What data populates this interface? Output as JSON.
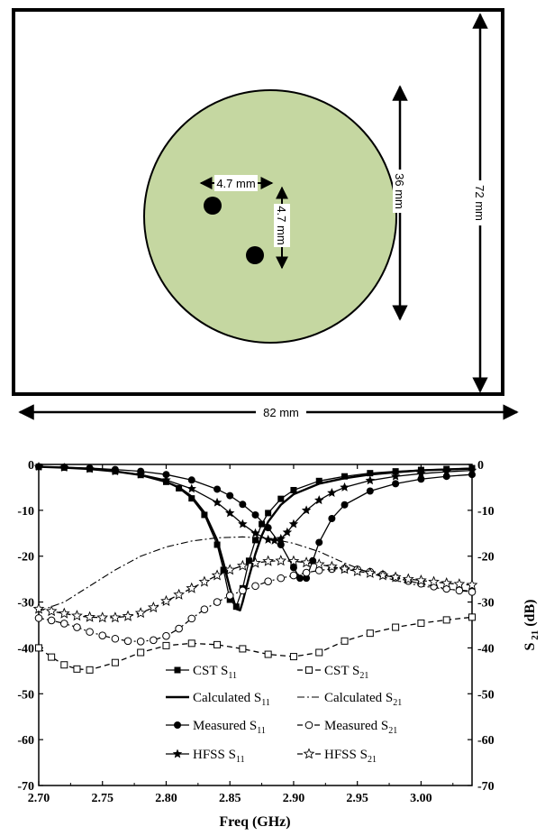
{
  "diagram": {
    "width_label": "82 mm",
    "height_label": "72 mm",
    "patch_label": "36 mm",
    "pin_horizontal_label": "4.7 mm",
    "pin_vertical_label": "4.7 mm",
    "colors": {
      "patch": "#c5d7a1",
      "outline": "#000000"
    }
  },
  "chart_data": {
    "type": "line",
    "xlabel": "Freq (GHz)",
    "ylabel_right": "S21 (dB)",
    "xlim": [
      2.7,
      3.04
    ],
    "ylim": [
      -70,
      0
    ],
    "xticks": [
      2.7,
      2.75,
      2.8,
      2.85,
      2.9,
      2.95,
      3.0
    ],
    "xtick_labels": [
      "2.70",
      "2.75",
      "2.80",
      "2.85",
      "2.90",
      "2.95",
      "3.00"
    ],
    "yticks": [
      0,
      -10,
      -20,
      -30,
      -40,
      -50,
      -60,
      -70
    ],
    "ytick_labels": [
      "0",
      "-10",
      "-20",
      "-30",
      "-40",
      "-50",
      "-60",
      "-70"
    ],
    "series": [
      {
        "name": "CST S11",
        "base": "CST S",
        "sub": "11",
        "style": "solid",
        "marker": "filled-square",
        "x": [
          2.7,
          2.72,
          2.74,
          2.76,
          2.78,
          2.8,
          2.81,
          2.82,
          2.83,
          2.84,
          2.845,
          2.85,
          2.855,
          2.86,
          2.865,
          2.87,
          2.875,
          2.88,
          2.89,
          2.9,
          2.92,
          2.94,
          2.96,
          2.98,
          3.0,
          3.02,
          3.04
        ],
        "y": [
          -0.5,
          -0.7,
          -1.0,
          -1.5,
          -2.3,
          -3.8,
          -5.2,
          -7.4,
          -11.0,
          -17.5,
          -23.0,
          -29.5,
          -31.0,
          -27.0,
          -21.0,
          -16.5,
          -13.0,
          -10.6,
          -7.5,
          -5.6,
          -3.6,
          -2.6,
          -1.9,
          -1.5,
          -1.2,
          -1.0,
          -0.8
        ]
      },
      {
        "name": "CST S21",
        "base": "CST S",
        "sub": "21",
        "style": "dash",
        "marker": "open-square",
        "x": [
          2.7,
          2.71,
          2.72,
          2.73,
          2.74,
          2.76,
          2.78,
          2.8,
          2.82,
          2.84,
          2.86,
          2.88,
          2.9,
          2.92,
          2.94,
          2.96,
          2.98,
          3.0,
          3.02,
          3.04
        ],
        "y": [
          -40.0,
          -42.0,
          -43.7,
          -44.6,
          -44.8,
          -43.2,
          -41.0,
          -39.5,
          -39.0,
          -39.3,
          -40.2,
          -41.4,
          -41.9,
          -41.0,
          -38.5,
          -36.8,
          -35.5,
          -34.6,
          -33.9,
          -33.3
        ]
      },
      {
        "name": "Calculated S11",
        "base": "Calculated S",
        "sub": "11",
        "style": "solid-thick",
        "marker": "none",
        "x": [
          2.7,
          2.72,
          2.74,
          2.76,
          2.78,
          2.8,
          2.81,
          2.82,
          2.83,
          2.84,
          2.845,
          2.85,
          2.855,
          2.858,
          2.86,
          2.865,
          2.87,
          2.875,
          2.88,
          2.89,
          2.9,
          2.92,
          2.94,
          2.96,
          2.98,
          3.0,
          3.02,
          3.04
        ],
        "y": [
          -0.5,
          -0.7,
          -1.0,
          -1.5,
          -2.3,
          -3.8,
          -5.0,
          -7.0,
          -10.5,
          -16.5,
          -21.5,
          -27.0,
          -31.5,
          -31.8,
          -30.0,
          -24.5,
          -19.5,
          -15.5,
          -12.5,
          -8.8,
          -6.5,
          -4.2,
          -3.0,
          -2.2,
          -1.7,
          -1.3,
          -1.1,
          -0.9
        ]
      },
      {
        "name": "Calculated S21",
        "base": "Calculated S",
        "sub": "21",
        "style": "dashdot",
        "marker": "none",
        "x": [
          2.7,
          2.72,
          2.74,
          2.76,
          2.78,
          2.8,
          2.82,
          2.84,
          2.86,
          2.88,
          2.9,
          2.92,
          2.94,
          2.96,
          2.98,
          3.0,
          3.02,
          3.04
        ],
        "y": [
          -32.0,
          -30.0,
          -26.5,
          -23.0,
          -20.0,
          -18.0,
          -16.7,
          -16.0,
          -15.8,
          -16.1,
          -17.2,
          -19.0,
          -21.5,
          -23.7,
          -25.3,
          -26.5,
          -27.2,
          -27.6
        ]
      },
      {
        "name": "Measured S11",
        "base": "Measured S",
        "sub": "11",
        "style": "solid",
        "marker": "filled-circle",
        "x": [
          2.7,
          2.72,
          2.74,
          2.76,
          2.78,
          2.8,
          2.82,
          2.84,
          2.85,
          2.86,
          2.87,
          2.88,
          2.89,
          2.9,
          2.905,
          2.91,
          2.915,
          2.92,
          2.93,
          2.94,
          2.96,
          2.98,
          3.0,
          3.02,
          3.04
        ],
        "y": [
          -0.5,
          -0.6,
          -0.8,
          -1.1,
          -1.5,
          -2.2,
          -3.4,
          -5.4,
          -6.8,
          -8.7,
          -11.0,
          -13.8,
          -17.5,
          -22.5,
          -24.8,
          -24.8,
          -21.0,
          -17.0,
          -11.8,
          -8.8,
          -5.8,
          -4.2,
          -3.2,
          -2.6,
          -2.2
        ]
      },
      {
        "name": "Measured S21",
        "base": "Measured S",
        "sub": "21",
        "style": "dash-dot-dot",
        "marker": "open-circle",
        "x": [
          2.7,
          2.71,
          2.72,
          2.73,
          2.74,
          2.75,
          2.76,
          2.77,
          2.78,
          2.79,
          2.8,
          2.81,
          2.82,
          2.83,
          2.84,
          2.85,
          2.86,
          2.87,
          2.88,
          2.89,
          2.9,
          2.91,
          2.92,
          2.93,
          2.94,
          2.95,
          2.96,
          2.97,
          2.98,
          2.99,
          3.0,
          3.01,
          3.02,
          3.03,
          3.04
        ],
        "y": [
          -33.5,
          -34.0,
          -34.7,
          -35.5,
          -36.5,
          -37.3,
          -38.0,
          -38.5,
          -38.6,
          -38.3,
          -37.4,
          -35.8,
          -33.6,
          -31.6,
          -30.0,
          -28.6,
          -27.5,
          -26.5,
          -25.5,
          -24.8,
          -24.2,
          -23.6,
          -23.1,
          -22.8,
          -22.7,
          -22.9,
          -23.4,
          -24.0,
          -24.7,
          -25.4,
          -26.0,
          -26.6,
          -27.1,
          -27.5,
          -27.8
        ]
      },
      {
        "name": "HFSS S11",
        "base": "HFSS S",
        "sub": "11",
        "style": "solid",
        "marker": "filled-star",
        "x": [
          2.7,
          2.72,
          2.74,
          2.76,
          2.78,
          2.8,
          2.82,
          2.84,
          2.85,
          2.86,
          2.87,
          2.88,
          2.885,
          2.89,
          2.895,
          2.9,
          2.91,
          2.92,
          2.93,
          2.94,
          2.96,
          2.98,
          3.0,
          3.02,
          3.04
        ],
        "y": [
          -0.5,
          -0.7,
          -1.0,
          -1.5,
          -2.2,
          -3.4,
          -5.3,
          -8.3,
          -10.6,
          -13.0,
          -15.0,
          -16.4,
          -16.6,
          -16.2,
          -14.8,
          -13.0,
          -10.0,
          -7.8,
          -6.2,
          -5.0,
          -3.5,
          -2.6,
          -2.0,
          -1.6,
          -1.3
        ]
      },
      {
        "name": "HFSS S21",
        "base": "HFSS S",
        "sub": "21",
        "style": "dash",
        "marker": "open-star",
        "x": [
          2.7,
          2.71,
          2.72,
          2.73,
          2.74,
          2.75,
          2.76,
          2.77,
          2.78,
          2.79,
          2.8,
          2.81,
          2.82,
          2.83,
          2.84,
          2.85,
          2.86,
          2.87,
          2.88,
          2.89,
          2.9,
          2.91,
          2.92,
          2.93,
          2.94,
          2.95,
          2.96,
          2.97,
          2.98,
          2.99,
          3.0,
          3.01,
          3.02,
          3.03,
          3.04
        ],
        "y": [
          -31.5,
          -32.0,
          -32.5,
          -33.0,
          -33.3,
          -33.4,
          -33.4,
          -33.1,
          -32.4,
          -31.2,
          -29.8,
          -28.4,
          -27.0,
          -25.6,
          -24.2,
          -23.0,
          -22.1,
          -21.5,
          -21.1,
          -21.0,
          -21.1,
          -21.4,
          -21.8,
          -22.3,
          -22.8,
          -23.3,
          -23.7,
          -24.2,
          -24.6,
          -25.0,
          -25.3,
          -25.6,
          -25.9,
          -26.1,
          -26.3
        ]
      }
    ]
  }
}
